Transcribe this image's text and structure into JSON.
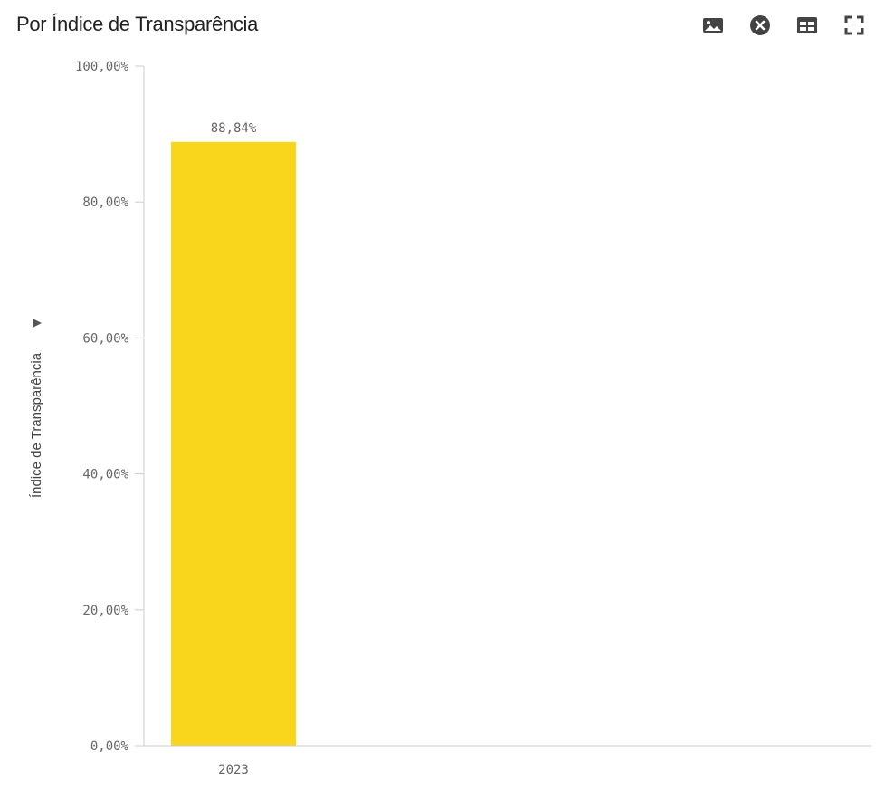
{
  "header": {
    "title": "Por Índice de Transparência"
  },
  "toolbar": {
    "buttons": [
      {
        "icon": "image-icon",
        "action": "export-image"
      },
      {
        "icon": "close-circle-icon",
        "action": "close"
      },
      {
        "icon": "table-icon",
        "action": "view-table"
      },
      {
        "icon": "fullscreen-icon",
        "action": "fullscreen"
      }
    ]
  },
  "chart_data": {
    "type": "bar",
    "title": "Por Índice de Transparência",
    "categories": [
      "2023"
    ],
    "values": [
      88.84
    ],
    "value_labels": [
      "88,84%"
    ],
    "ylabel": "Índice de Transparência",
    "ylim": [
      0,
      100
    ],
    "yticks": [
      0,
      20,
      40,
      60,
      80,
      100
    ],
    "ytick_labels": [
      "0,00%",
      "20,00%",
      "40,00%",
      "60,00%",
      "80,00%",
      "100,00%"
    ],
    "bar_color": "#F9D51B",
    "grid": false,
    "legend": "none"
  }
}
